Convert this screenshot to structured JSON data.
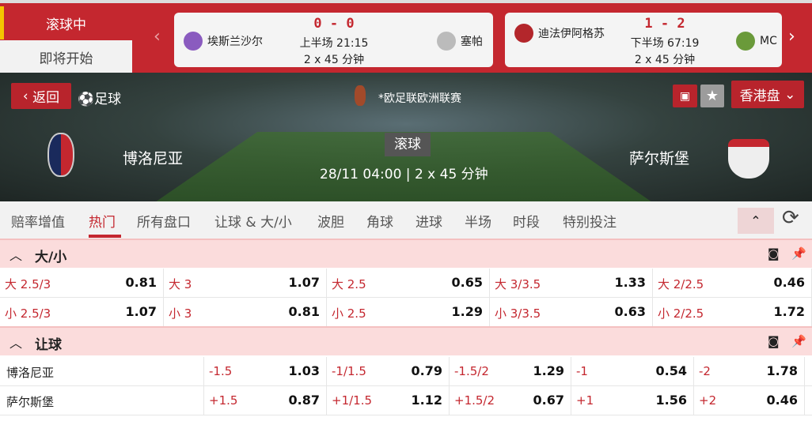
{
  "topbar": {
    "live_tab": "滚球中",
    "upcoming_tab": "即将开始",
    "prev": "‹",
    "next": "›",
    "matches": [
      {
        "home": "埃斯兰沙尔",
        "away": "塞帕",
        "score": "0 - 0",
        "time": "上半场 21:15",
        "duration": "2 x 45 分钟"
      },
      {
        "home": "迪法伊阿格苏",
        "away": "MC",
        "score": "1 - 2",
        "time": "下半场 67:19",
        "duration": "2 x 45 分钟"
      }
    ]
  },
  "hero": {
    "back": "返回",
    "sport": "足球",
    "league": "*欧足联欧洲联赛",
    "odds_type": "香港盘",
    "status": "滚球",
    "home": "博洛尼亚",
    "away": "萨尔斯堡",
    "datetime": "28/11 04:00",
    "duration": "2 x 45 分钟"
  },
  "tabs": [
    "赔率增值",
    "热门",
    "所有盘口",
    "让球 & 大/小",
    "波胆",
    "角球",
    "进球",
    "半场",
    "时段",
    "特别投注"
  ],
  "active_tab": "热门",
  "over_under": {
    "title": "大/小",
    "rows": [
      [
        {
          "l": "大 2.5/3",
          "v": "0.81"
        },
        {
          "l": "大 3",
          "v": "1.07"
        },
        {
          "l": "大 2.5",
          "v": "0.65"
        },
        {
          "l": "大 3/3.5",
          "v": "1.33"
        },
        {
          "l": "大 2/2.5",
          "v": "0.46"
        }
      ],
      [
        {
          "l": "小 2.5/3",
          "v": "1.07"
        },
        {
          "l": "小 3",
          "v": "0.81"
        },
        {
          "l": "小 2.5",
          "v": "1.29"
        },
        {
          "l": "小 3/3.5",
          "v": "0.63"
        },
        {
          "l": "小 2/2.5",
          "v": "1.72"
        }
      ]
    ]
  },
  "handicap": {
    "title": "让球",
    "rows": [
      {
        "team": "博洛尼亚",
        "cells": [
          {
            "l": "-1.5",
            "v": "1.03"
          },
          {
            "l": "-1/1.5",
            "v": "0.79"
          },
          {
            "l": "-1.5/2",
            "v": "1.29"
          },
          {
            "l": "-1",
            "v": "0.54"
          },
          {
            "l": "-2",
            "v": "1.78"
          }
        ]
      },
      {
        "team": "萨尔斯堡",
        "cells": [
          {
            "l": "+1.5",
            "v": "0.87"
          },
          {
            "l": "+1/1.5",
            "v": "1.12"
          },
          {
            "l": "+1.5/2",
            "v": "0.67"
          },
          {
            "l": "+1",
            "v": "1.56"
          },
          {
            "l": "+2",
            "v": "0.46"
          }
        ]
      }
    ]
  }
}
